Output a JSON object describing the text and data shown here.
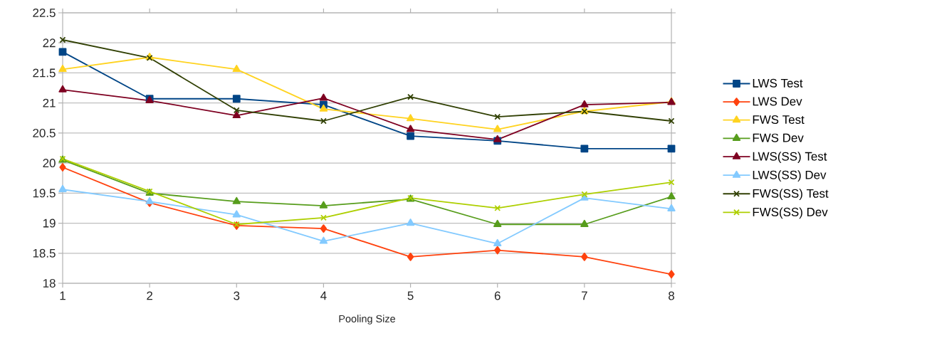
{
  "chart_data": {
    "type": "line",
    "xlabel": "Pooling Size",
    "x": [
      1,
      2,
      3,
      4,
      5,
      6,
      7,
      8
    ],
    "xlim": [
      1,
      8
    ],
    "xticks": [
      1,
      2,
      3,
      4,
      5,
      6,
      7,
      8
    ],
    "ylim": [
      18,
      22.5
    ],
    "yticks": [
      18,
      18.5,
      19,
      19.5,
      20,
      20.5,
      21,
      21.5,
      22,
      22.5
    ],
    "grid": "y",
    "legend": "right",
    "series": [
      {
        "name": "LWS Test",
        "color": "#004586",
        "marker": "square",
        "values": [
          21.85,
          21.07,
          21.07,
          20.97,
          20.45,
          20.37,
          20.24,
          20.24
        ]
      },
      {
        "name": "LWS Dev",
        "color": "#ff420e",
        "marker": "diamond",
        "values": [
          19.93,
          19.34,
          18.96,
          18.91,
          18.44,
          18.55,
          18.44,
          18.15
        ]
      },
      {
        "name": "FWS Test",
        "color": "#ffd320",
        "marker": "triangle",
        "values": [
          21.56,
          21.76,
          21.56,
          20.9,
          20.74,
          20.56,
          20.86,
          21.02
        ]
      },
      {
        "name": "FWS Dev",
        "color": "#579d1c",
        "marker": "triangle",
        "values": [
          20.05,
          19.5,
          19.36,
          19.29,
          19.4,
          18.98,
          18.98,
          19.44
        ]
      },
      {
        "name": "LWS(SS) Test",
        "color": "#7e0021",
        "marker": "triangle",
        "values": [
          21.22,
          21.04,
          20.79,
          21.08,
          20.56,
          20.39,
          20.97,
          21.01
        ]
      },
      {
        "name": "LWS(SS) Dev",
        "color": "#83caff",
        "marker": "triangle",
        "values": [
          19.56,
          19.36,
          19.14,
          18.7,
          19.0,
          18.66,
          19.42,
          19.24
        ]
      },
      {
        "name": "FWS(SS) Test",
        "color": "#314004",
        "marker": "cross",
        "values": [
          22.05,
          21.75,
          20.88,
          20.7,
          21.1,
          20.77,
          20.86,
          20.7
        ]
      },
      {
        "name": "FWS(SS) Dev",
        "color": "#aecf00",
        "marker": "cross",
        "values": [
          20.07,
          19.53,
          18.98,
          19.09,
          19.42,
          19.25,
          19.48,
          19.68
        ]
      }
    ]
  }
}
